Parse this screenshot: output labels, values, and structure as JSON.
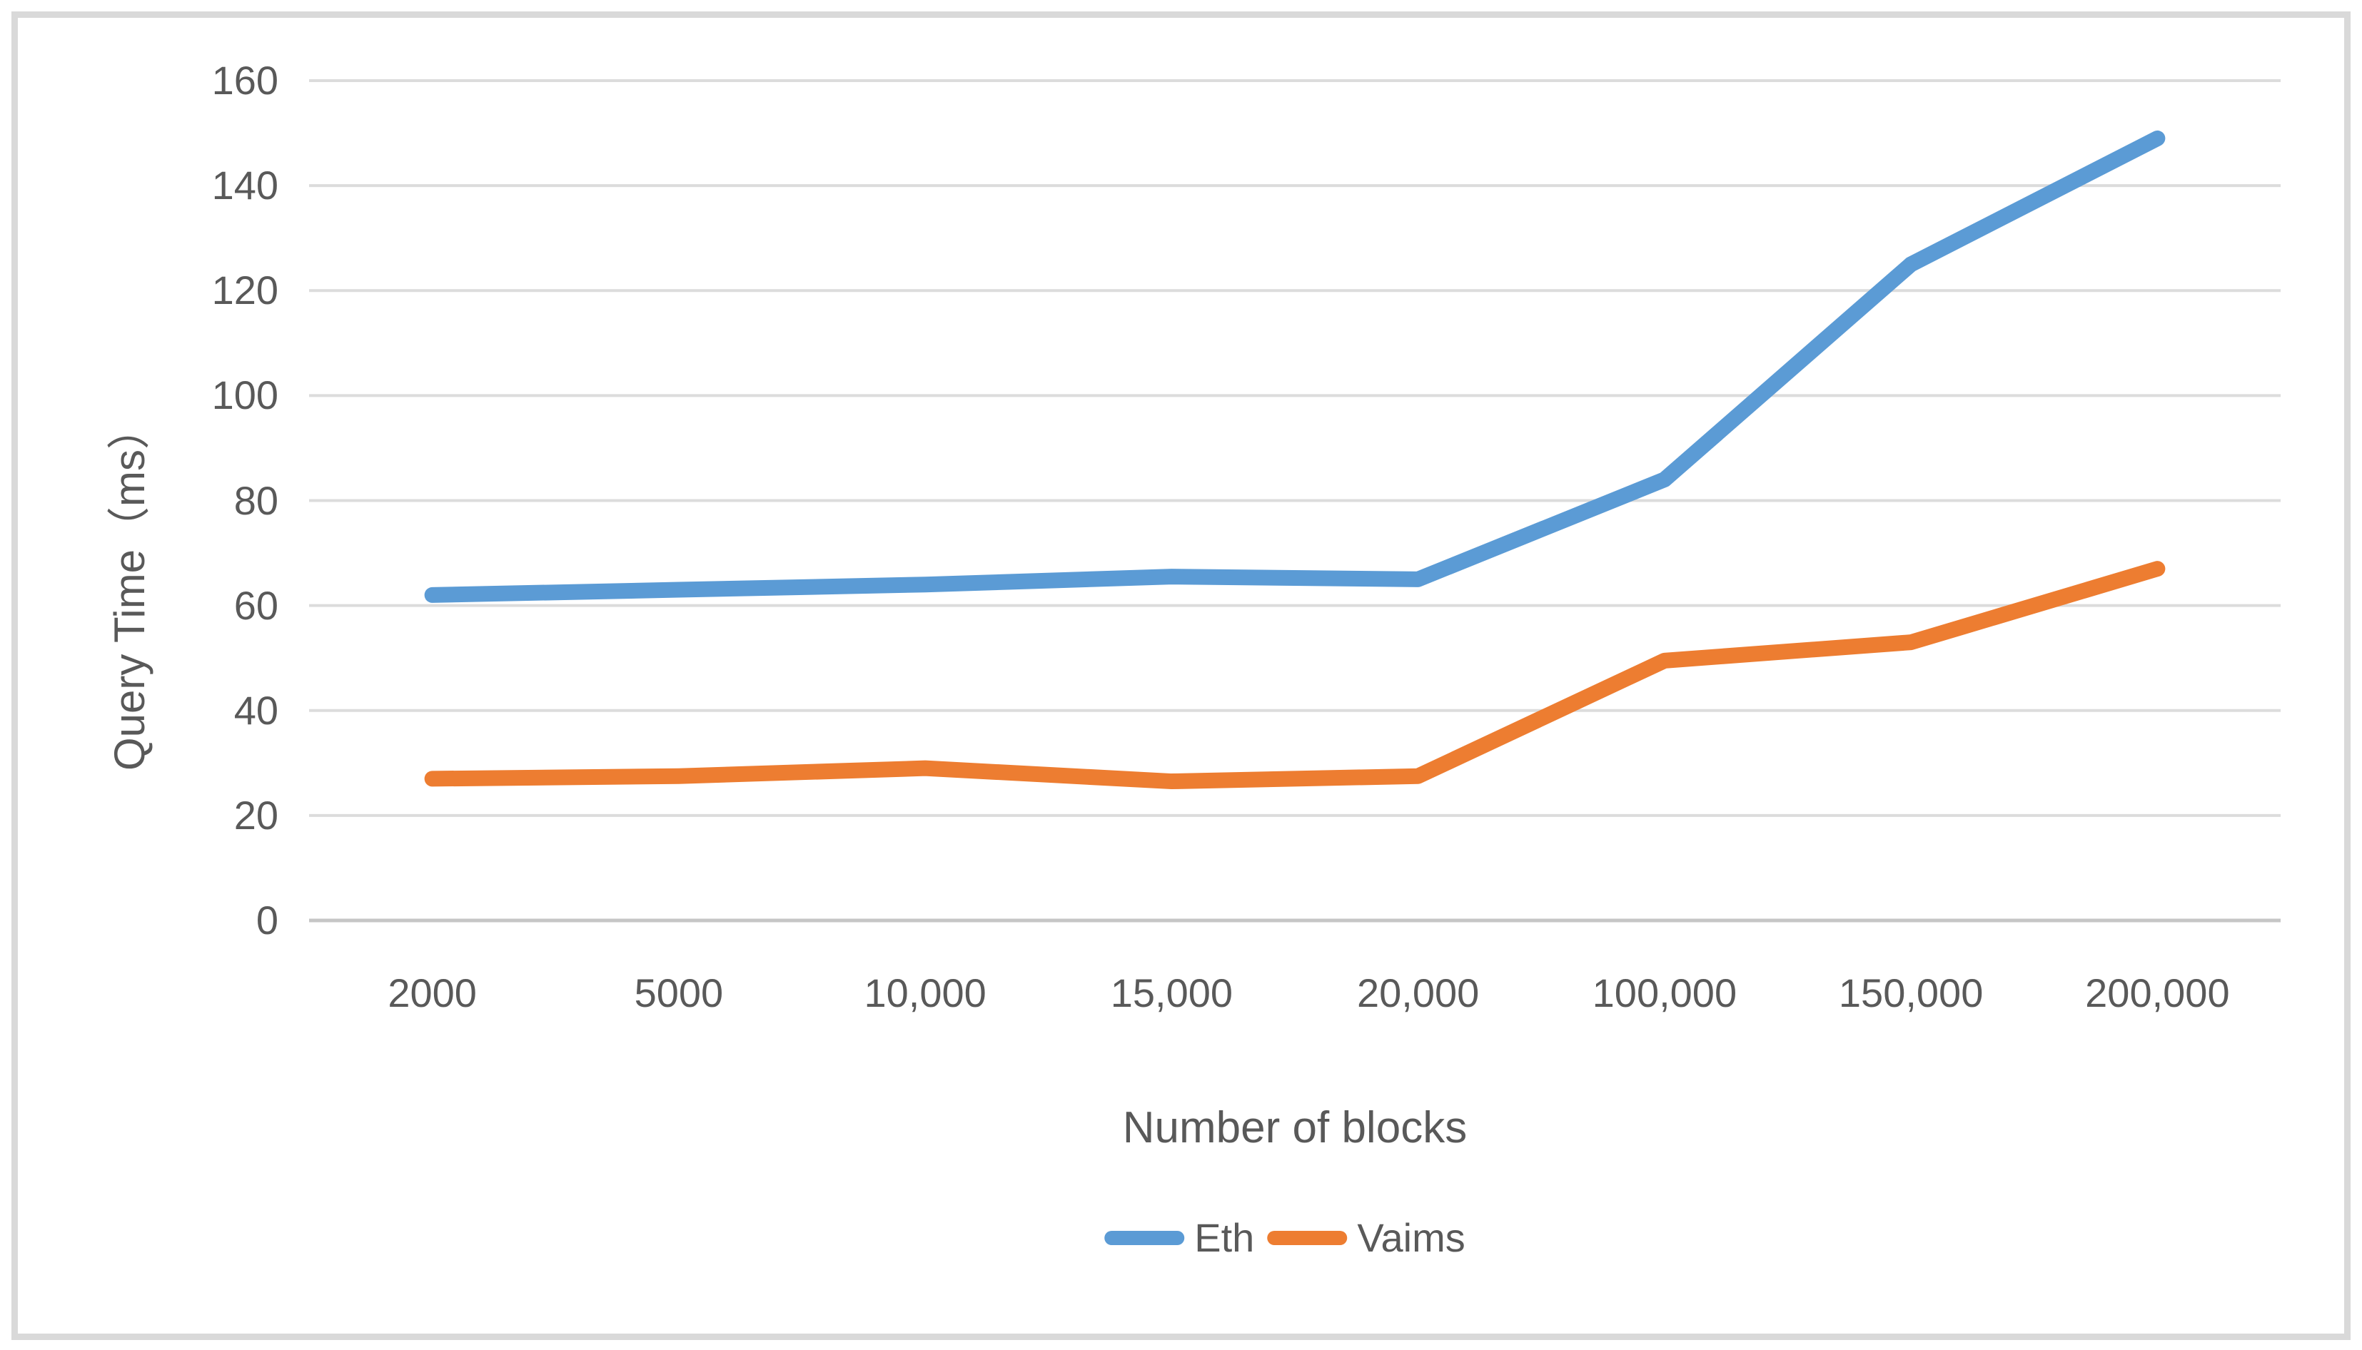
{
  "figure": {
    "background": "#FFFFFF",
    "border_color": "#D9D9D9"
  },
  "chart_data": {
    "type": "line",
    "title": "",
    "xlabel": "Number of blocks",
    "ylabel": "Query Time（ms）",
    "categories": [
      "2000",
      "5000",
      "10,000",
      "15,000",
      "20,000",
      "100,000",
      "150,000",
      "200,000"
    ],
    "series": [
      {
        "name": "Eth",
        "color": "#5B9BD5",
        "values": [
          62,
          63,
          64,
          65.5,
          65,
          84,
          125,
          149
        ]
      },
      {
        "name": "Vaims",
        "color": "#ED7D31",
        "values": [
          27,
          27.5,
          29,
          26.5,
          27.5,
          49.5,
          53,
          67
        ]
      }
    ],
    "ylim": [
      0,
      160
    ],
    "yticks": [
      0,
      20,
      40,
      60,
      80,
      100,
      120,
      140,
      160
    ],
    "grid": true,
    "legend_position": "bottom",
    "text_color": "#595959",
    "gridline_color": "#DCDCDC",
    "axisline_color": "#C6C6C6",
    "line_width": 22
  }
}
